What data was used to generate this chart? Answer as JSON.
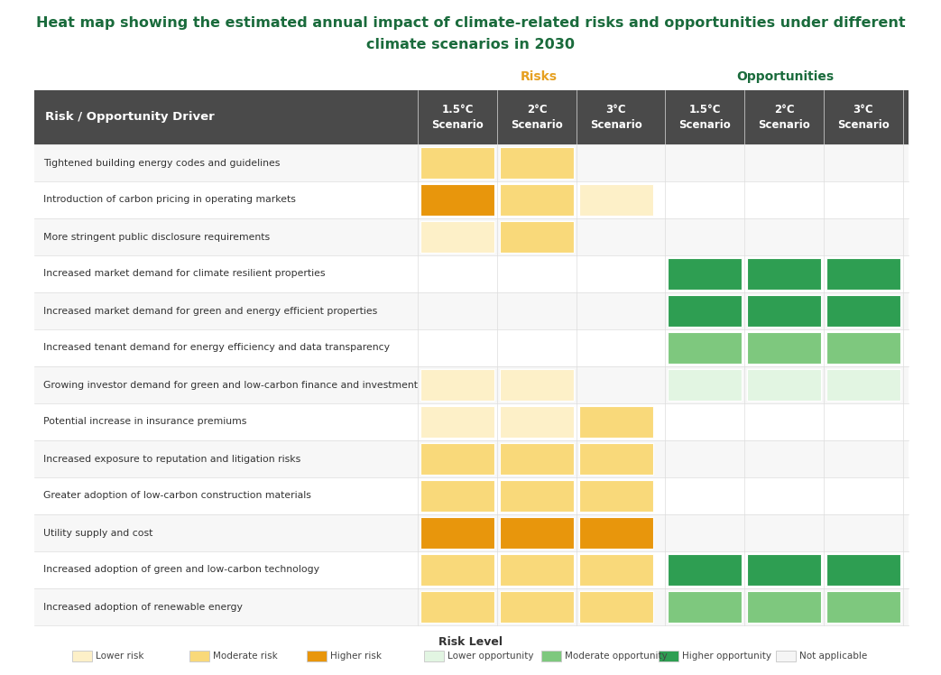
{
  "title_line1": "Heat map showing the estimated annual impact of climate-related risks and opportunities under different",
  "title_line2": "climate scenarios in 2030",
  "title_color": "#1a6b3c",
  "risks_label": "Risks",
  "risks_color": "#e6a020",
  "opportunities_label": "Opportunities",
  "opportunities_color": "#1a6b3c",
  "header_bg": "#4a4a4a",
  "header_text_color": "#ffffff",
  "row_label_col": "Risk / Opportunity Driver",
  "col_headers": [
    "1.5°C\nScenario",
    "2°C\nScenario",
    "3°C\nScenario",
    "1.5°C\nScenario",
    "2°C\nScenario",
    "3°C\nScenario"
  ],
  "rows": [
    "Tightened building energy codes and guidelines",
    "Introduction of carbon pricing in operating markets",
    "More stringent public disclosure requirements",
    "Increased market demand for climate resilient properties",
    "Increased market demand for green and energy efficient properties",
    "Increased tenant demand for energy efficiency and data transparency",
    "Growing investor demand for green and low-carbon finance and investment",
    "Potential increase in insurance premiums",
    "Increased exposure to reputation and litigation risks",
    "Greater adoption of low-carbon construction materials",
    "Utility supply and cost",
    "Increased adoption of green and low-carbon technology",
    "Increased adoption of renewable energy"
  ],
  "colors": {
    "none": "#f5f5f5",
    "lower_risk": "#fdf0c8",
    "moderate_risk": "#f9d97a",
    "higher_risk": "#e8960c",
    "lower_opp": "#e2f5e2",
    "moderate_opp": "#7ec87e",
    "higher_opp": "#2e9e52"
  },
  "cell_data": [
    [
      "moderate_risk",
      "moderate_risk",
      "none",
      "none",
      "none",
      "none"
    ],
    [
      "higher_risk",
      "moderate_risk",
      "lower_risk",
      "none",
      "none",
      "none"
    ],
    [
      "lower_risk",
      "moderate_risk",
      "none",
      "none",
      "none",
      "none"
    ],
    [
      "none",
      "none",
      "none",
      "higher_opp",
      "higher_opp",
      "higher_opp"
    ],
    [
      "none",
      "none",
      "none",
      "higher_opp",
      "higher_opp",
      "higher_opp"
    ],
    [
      "none",
      "none",
      "none",
      "moderate_opp",
      "moderate_opp",
      "moderate_opp"
    ],
    [
      "lower_risk",
      "lower_risk",
      "none",
      "lower_opp",
      "lower_opp",
      "lower_opp"
    ],
    [
      "lower_risk",
      "lower_risk",
      "moderate_risk",
      "none",
      "none",
      "none"
    ],
    [
      "moderate_risk",
      "moderate_risk",
      "moderate_risk",
      "none",
      "none",
      "none"
    ],
    [
      "moderate_risk",
      "moderate_risk",
      "moderate_risk",
      "none",
      "none",
      "none"
    ],
    [
      "higher_risk",
      "higher_risk",
      "higher_risk",
      "none",
      "none",
      "none"
    ],
    [
      "moderate_risk",
      "moderate_risk",
      "moderate_risk",
      "higher_opp",
      "higher_opp",
      "higher_opp"
    ],
    [
      "moderate_risk",
      "moderate_risk",
      "moderate_risk",
      "moderate_opp",
      "moderate_opp",
      "moderate_opp"
    ]
  ],
  "legend_items": [
    {
      "label": "Lower risk",
      "color": "#fdf0c8",
      "edge": "#cccccc"
    },
    {
      "label": "Moderate risk",
      "color": "#f9d97a",
      "edge": "#cccccc"
    },
    {
      "label": "Higher risk",
      "color": "#e8960c",
      "edge": "#cccccc"
    },
    {
      "label": "Lower opportunity",
      "color": "#e2f5e2",
      "edge": "#cccccc"
    },
    {
      "label": "Moderate opportunity",
      "color": "#7ec87e",
      "edge": "#cccccc"
    },
    {
      "label": "Higher opportunity",
      "color": "#2e9e52",
      "edge": "#cccccc"
    },
    {
      "label": "Not applicable",
      "color": "#f5f5f5",
      "edge": "#cccccc"
    }
  ],
  "bg_color": "#ffffff",
  "separator_color": "#cccccc",
  "table_border_color": "#888888"
}
